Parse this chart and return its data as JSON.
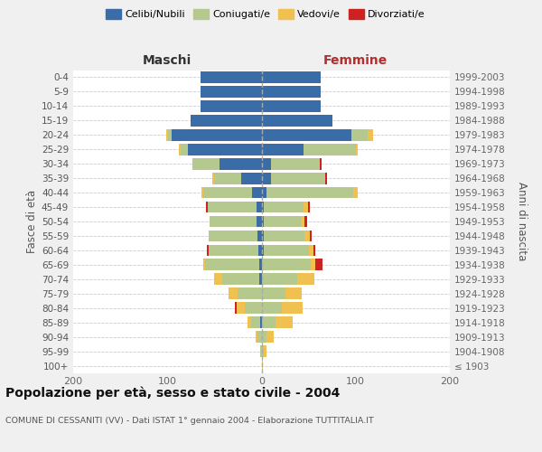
{
  "age_groups": [
    "100+",
    "95-99",
    "90-94",
    "85-89",
    "80-84",
    "75-79",
    "70-74",
    "65-69",
    "60-64",
    "55-59",
    "50-54",
    "45-49",
    "40-44",
    "35-39",
    "30-34",
    "25-29",
    "20-24",
    "15-19",
    "10-14",
    "5-9",
    "0-4"
  ],
  "birth_years": [
    "≤ 1903",
    "1904-1908",
    "1909-1913",
    "1914-1918",
    "1919-1923",
    "1924-1928",
    "1929-1933",
    "1934-1938",
    "1939-1943",
    "1944-1948",
    "1949-1953",
    "1954-1958",
    "1959-1963",
    "1964-1968",
    "1969-1973",
    "1974-1978",
    "1979-1983",
    "1984-1988",
    "1989-1993",
    "1994-1998",
    "1999-2003"
  ],
  "male_celibi": [
    0,
    0,
    0,
    1,
    0,
    0,
    2,
    2,
    3,
    4,
    5,
    5,
    10,
    22,
    45,
    78,
    95,
    75,
    65,
    65,
    65
  ],
  "male_coniugati": [
    0,
    1,
    4,
    10,
    18,
    25,
    40,
    58,
    53,
    52,
    50,
    52,
    52,
    28,
    28,
    8,
    4,
    0,
    0,
    0,
    0
  ],
  "male_vedovi": [
    0,
    0,
    2,
    4,
    8,
    10,
    8,
    2,
    0,
    0,
    0,
    0,
    2,
    2,
    0,
    2,
    2,
    0,
    0,
    0,
    0
  ],
  "male_divorziati": [
    0,
    0,
    0,
    0,
    2,
    0,
    0,
    0,
    2,
    0,
    0,
    2,
    0,
    0,
    0,
    0,
    0,
    0,
    0,
    0,
    0
  ],
  "female_nubili": [
    0,
    0,
    0,
    0,
    0,
    0,
    0,
    0,
    2,
    2,
    2,
    2,
    5,
    10,
    10,
    45,
    95,
    75,
    63,
    63,
    63
  ],
  "female_coniugate": [
    0,
    2,
    5,
    15,
    22,
    25,
    38,
    52,
    48,
    44,
    40,
    43,
    92,
    58,
    52,
    55,
    18,
    0,
    0,
    0,
    0
  ],
  "female_vedove": [
    1,
    3,
    8,
    18,
    22,
    18,
    18,
    5,
    5,
    5,
    4,
    4,
    5,
    0,
    0,
    2,
    5,
    0,
    0,
    0,
    0
  ],
  "female_divorziate": [
    0,
    0,
    0,
    0,
    0,
    0,
    0,
    8,
    2,
    2,
    2,
    2,
    0,
    2,
    2,
    0,
    0,
    0,
    0,
    0,
    0
  ],
  "colors": {
    "celibi": "#3a6ca8",
    "coniugati": "#b5c98e",
    "vedovi": "#f0c050",
    "divorziati": "#cc2222"
  },
  "title": "Popolazione per età, sesso e stato civile - 2004",
  "subtitle": "COMUNE DI CESSANITI (VV) - Dati ISTAT 1° gennaio 2004 - Elaborazione TUTTITALIA.IT",
  "xlabel_left": "Maschi",
  "xlabel_right": "Femmine",
  "ylabel_left": "Fasce di età",
  "ylabel_right": "Anni di nascita",
  "xlim": 200,
  "bg_color": "#f0f0f0",
  "plot_bg": "#ffffff",
  "legend_labels": [
    "Celibi/Nubili",
    "Coniugati/e",
    "Vedovi/e",
    "Divorziati/e"
  ]
}
